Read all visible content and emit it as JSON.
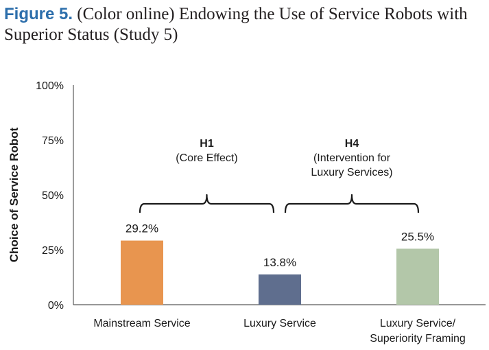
{
  "figure": {
    "number": "Figure 5.",
    "caption": "(Color online) Endowing the Use of Service Robots with Superior Status (Study 5)"
  },
  "chart_data": {
    "type": "bar",
    "categories": [
      [
        "Mainstream Service"
      ],
      [
        "Luxury Service"
      ],
      [
        "Luxury Service/",
        "Superiority Framing"
      ]
    ],
    "values": [
      29.2,
      13.8,
      25.5
    ],
    "value_labels": [
      "29.2%",
      "13.8%",
      "25.5%"
    ],
    "colors": [
      "#e8954f",
      "#5f6e8e",
      "#b3c7a9"
    ],
    "ylabel": "Choice of Service Robot",
    "ylim": [
      0,
      100
    ],
    "yticks": [
      0,
      25,
      50,
      75,
      100
    ],
    "ytick_labels": [
      "0%",
      "25%",
      "50%",
      "75%",
      "100%"
    ],
    "grid": false,
    "annotations": [
      {
        "lines": [
          "H1",
          "(Core Effect)"
        ],
        "spans": [
          "Mainstream Service",
          "Luxury Service"
        ]
      },
      {
        "lines": [
          "H4",
          "(Intervention for",
          "Luxury Services)"
        ],
        "spans": [
          "Luxury Service",
          "Luxury Service/Superiority Framing"
        ]
      }
    ]
  }
}
